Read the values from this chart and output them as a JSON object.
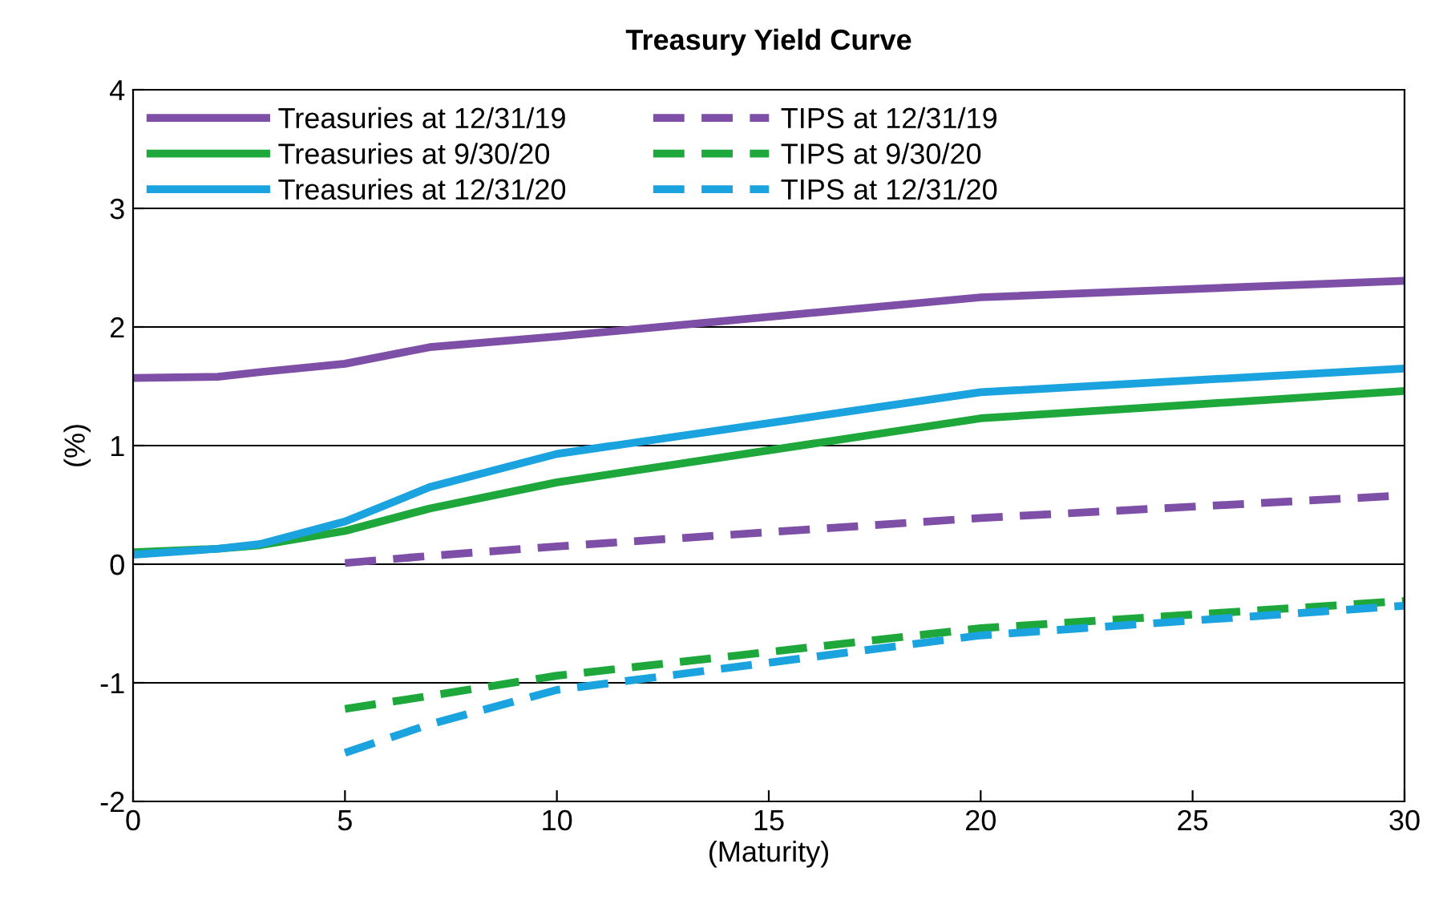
{
  "chart_data": {
    "type": "line",
    "title": "Treasury Yield Curve",
    "xlabel": "(Maturity)",
    "ylabel": "(%)",
    "xlim": [
      0,
      30
    ],
    "xticks": [
      0,
      5,
      10,
      15,
      20,
      25,
      30
    ],
    "ylim": [
      -2,
      4
    ],
    "yticks": [
      -2,
      -1,
      0,
      1,
      2,
      3,
      4
    ],
    "grid": "y",
    "legend": "top left",
    "marker": "none",
    "series": [
      {
        "name": "Treasuries at 12/31/19",
        "color": "#7e4fa6",
        "line_style": "solid",
        "x": [
          0,
          2,
          3,
          5,
          7,
          10,
          20,
          30
        ],
        "values": [
          1.57,
          1.58,
          1.62,
          1.69,
          1.83,
          1.92,
          2.25,
          2.39
        ]
      },
      {
        "name": "Treasuries at 9/30/20",
        "color": "#1ea83c",
        "line_style": "solid",
        "x": [
          0,
          2,
          3,
          5,
          7,
          10,
          20,
          30
        ],
        "values": [
          0.1,
          0.13,
          0.16,
          0.28,
          0.47,
          0.69,
          1.23,
          1.46
        ]
      },
      {
        "name": "Treasuries at 12/31/20",
        "color": "#1aa3df",
        "line_style": "solid",
        "x": [
          0,
          2,
          3,
          5,
          7,
          10,
          20,
          30
        ],
        "values": [
          0.08,
          0.13,
          0.17,
          0.36,
          0.65,
          0.93,
          1.45,
          1.65
        ]
      },
      {
        "name": "TIPS at 12/31/19",
        "color": "#7e4fa6",
        "line_style": "dashed",
        "x": [
          5,
          7,
          10,
          20,
          30
        ],
        "values": [
          0.01,
          0.07,
          0.15,
          0.39,
          0.58
        ]
      },
      {
        "name": "TIPS at 9/30/20",
        "color": "#1ea83c",
        "line_style": "dashed",
        "x": [
          5,
          7,
          10,
          20,
          30
        ],
        "values": [
          -1.22,
          -1.11,
          -0.94,
          -0.54,
          -0.31
        ]
      },
      {
        "name": "TIPS at 12/31/20",
        "color": "#1aa3df",
        "line_style": "dashed",
        "x": [
          5,
          7,
          10,
          20,
          30
        ],
        "values": [
          -1.59,
          -1.35,
          -1.06,
          -0.6,
          -0.35
        ]
      }
    ]
  }
}
